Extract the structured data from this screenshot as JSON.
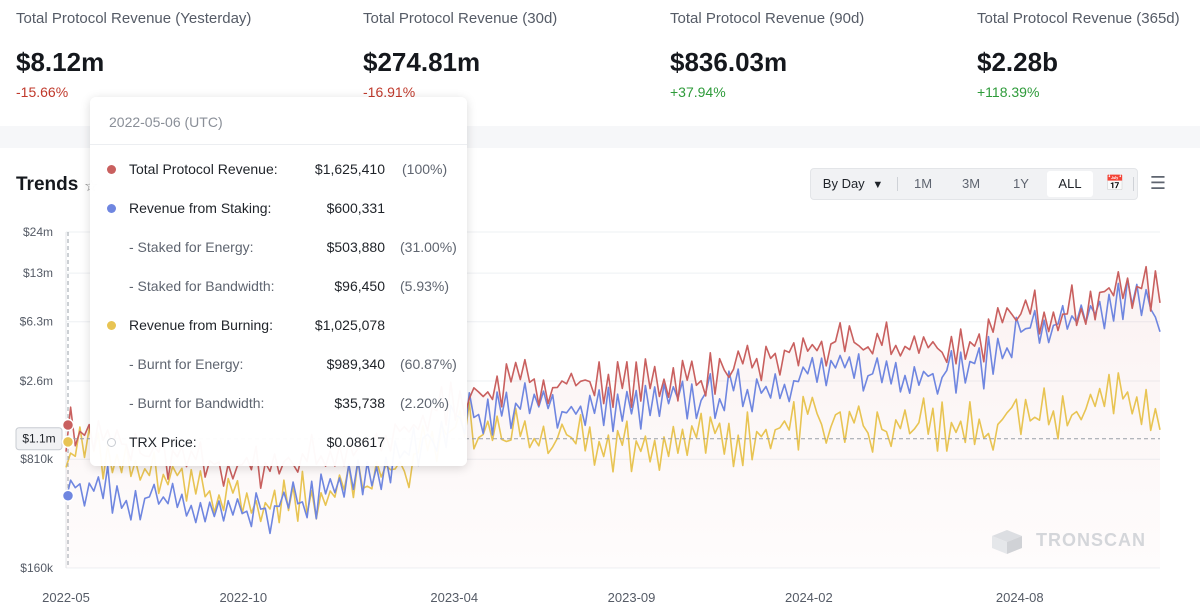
{
  "stats": [
    {
      "label": "Total Protocol Revenue (Yesterday)",
      "value": "$8.12m",
      "change": "-15.66%",
      "dir": "neg"
    },
    {
      "label": "Total Protocol Revenue (30d)",
      "value": "$274.81m",
      "change": "-16.91%",
      "dir": "neg"
    },
    {
      "label": "Total Protocol Revenue (90d)",
      "value": "$836.03m",
      "change": "+37.94%",
      "dir": "pos"
    },
    {
      "label": "Total Protocol Revenue (365d)",
      "value": "$2.28b",
      "change": "+118.39%",
      "dir": "pos"
    }
  ],
  "trends": {
    "title": "Trends"
  },
  "toolbar": {
    "by_day": "By Day",
    "ranges": [
      "1M",
      "3M",
      "1Y",
      "ALL"
    ],
    "active": "ALL"
  },
  "tooltip": {
    "date": "2022-05-06 (UTC)",
    "rows": [
      {
        "label": "Total Protocol Revenue:",
        "value": "$1,625,410",
        "pct": "(100%)",
        "dot": "#c9605f",
        "sub": false
      },
      {
        "label": "Revenue from Staking:",
        "value": "$600,331",
        "pct": "",
        "dot": "#6f86e0",
        "sub": false
      },
      {
        "label": "- Staked for Energy:",
        "value": "$503,880",
        "pct": "(31.00%)",
        "dot": "",
        "sub": true
      },
      {
        "label": "- Staked for Bandwidth:",
        "value": "$96,450",
        "pct": "(5.93%)",
        "dot": "",
        "sub": true
      },
      {
        "label": "Revenue from Burning:",
        "value": "$1,025,078",
        "pct": "",
        "dot": "#e8c453",
        "sub": false
      },
      {
        "label": "- Burnt for Energy:",
        "value": "$989,340",
        "pct": "(60.87%)",
        "dot": "",
        "sub": true
      },
      {
        "label": "- Burnt for Bandwidth:",
        "value": "$35,738",
        "pct": "(2.20%)",
        "dot": "",
        "sub": true
      },
      {
        "label": "TRX Price:",
        "value": "$0.08617",
        "pct": "",
        "dot": "hollow",
        "sub": false
      }
    ]
  },
  "watermark": "TRONSCAN",
  "chart_data": {
    "type": "line",
    "title": "Trends",
    "scale": "log",
    "y_ticks": [
      "$160k",
      "$810k",
      "$2.6m",
      "$6.3m",
      "$13m",
      "$24m"
    ],
    "y_tick_values": [
      160000,
      810000,
      2600000,
      6300000,
      13000000,
      24000000
    ],
    "crosshair_label": "$1.1m",
    "crosshair_value": 1100000,
    "x_ticks": [
      "2022-05",
      "2022-10",
      "2023-04",
      "2023-09",
      "2024-02",
      "2024-08"
    ],
    "x_range": [
      "2022-05-01",
      "2024-11-30"
    ],
    "series": [
      {
        "name": "Total Protocol Revenue",
        "color": "#c9605f",
        "dates": [
          "2022-05",
          "2022-08",
          "2022-10",
          "2022-12",
          "2023-02",
          "2023-04",
          "2023-06",
          "2023-09",
          "2023-12",
          "2024-02",
          "2024-04",
          "2024-06",
          "2024-07",
          "2024-08",
          "2024-10",
          "2024-11",
          "2024-11-30"
        ],
        "values": [
          1300000,
          800000,
          700000,
          850000,
          1000000,
          2000000,
          2600000,
          2500000,
          3000000,
          4200000,
          4500000,
          4300000,
          4800000,
          7200000,
          8000000,
          11000000,
          9500000
        ]
      },
      {
        "name": "Revenue from Staking",
        "color": "#6f86e0",
        "dates": [
          "2022-05",
          "2022-08",
          "2022-10",
          "2022-12",
          "2023-02",
          "2023-04",
          "2023-06",
          "2023-09",
          "2023-12",
          "2024-02",
          "2024-04",
          "2024-06",
          "2024-07",
          "2024-08",
          "2024-10",
          "2024-11",
          "2024-11-30"
        ],
        "values": [
          600000,
          400000,
          330000,
          450000,
          700000,
          1500000,
          1800000,
          1700000,
          2200000,
          2900000,
          3000000,
          3000000,
          3300000,
          5500000,
          6200000,
          9000000,
          7000000
        ]
      },
      {
        "name": "Revenue from Burning",
        "color": "#e8c453",
        "dates": [
          "2022-05",
          "2022-08",
          "2022-10",
          "2022-12",
          "2023-02",
          "2023-04",
          "2023-06",
          "2023-09",
          "2023-12",
          "2024-02",
          "2024-04",
          "2024-06",
          "2024-07",
          "2024-08",
          "2024-10",
          "2024-11",
          "2024-11-30"
        ],
        "values": [
          1000000,
          600000,
          450000,
          480000,
          600000,
          1300000,
          1100000,
          1000000,
          1100000,
          1500000,
          1300000,
          1300000,
          1200000,
          1700000,
          1600000,
          2500000,
          1600000
        ]
      }
    ]
  }
}
